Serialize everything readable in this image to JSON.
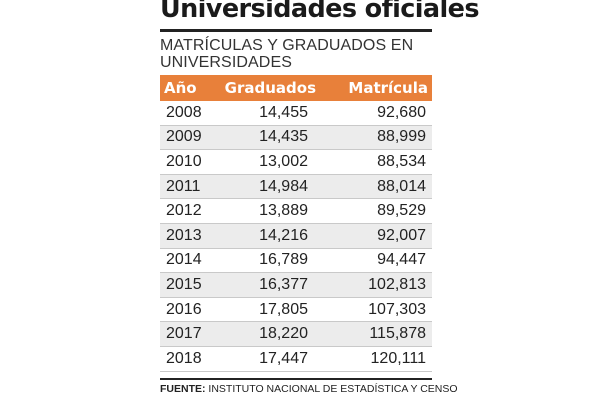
{
  "title": "Universidades oficiales",
  "subtitle": "MATRÍCULAS Y GRADUADOS EN UNIVERSIDADES",
  "source_label": "FUENTE:",
  "source_text": "INSTITUTO NACIONAL DE ESTADÍSTICA Y CENSO",
  "colors": {
    "header_bg": "#e8803a",
    "header_text": "#ffffff",
    "stripe": "#ececec",
    "rule": "#222222"
  },
  "chart_data": {
    "type": "table",
    "columns": [
      "Año",
      "Graduados",
      "Matrícula"
    ],
    "rows": [
      [
        "2008",
        "14,455",
        "92,680"
      ],
      [
        "2009",
        "14,435",
        "88,999"
      ],
      [
        "2010",
        "13,002",
        "88,534"
      ],
      [
        "2011",
        "14,984",
        "88,014"
      ],
      [
        "2012",
        "13,889",
        "89,529"
      ],
      [
        "2013",
        "14,216",
        "92,007"
      ],
      [
        "2014",
        "16,789",
        "94,447"
      ],
      [
        "2015",
        "16,377",
        "102,813"
      ],
      [
        "2016",
        "17,805",
        "107,303"
      ],
      [
        "2017",
        "18,220",
        "115,878"
      ],
      [
        "2018",
        "17,447",
        "120,111"
      ]
    ]
  }
}
